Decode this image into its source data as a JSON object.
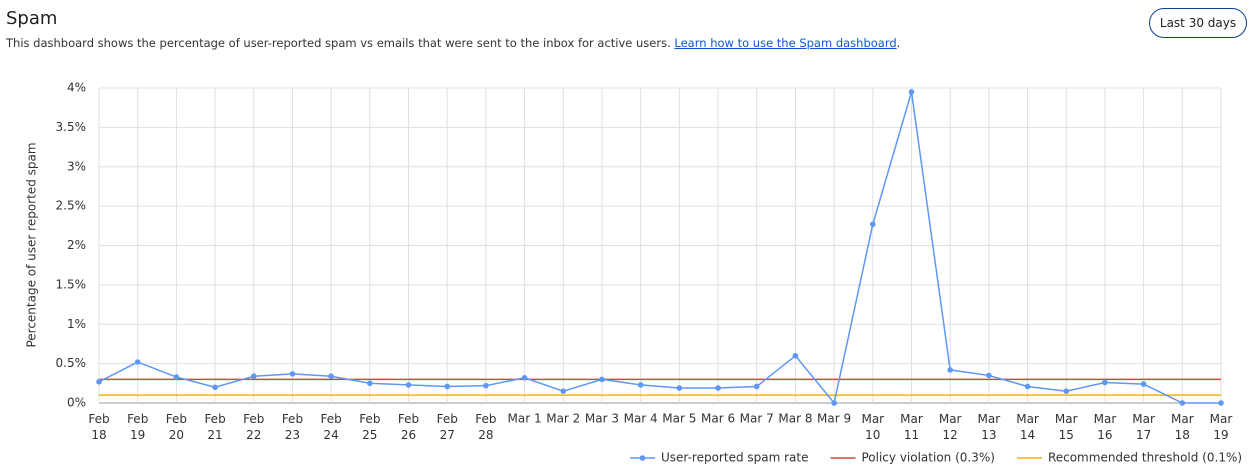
{
  "header": {
    "title": "Spam",
    "description": "This dashboard shows the percentage of user-reported spam vs emails that were sent to the inbox for active users.",
    "link": "Learn how to use the Spam dashboard",
    "link_end": ".",
    "button": "Last 30 days"
  },
  "chart_data": {
    "type": "line",
    "y_label": "Percentage of user reported spam",
    "categories": [
      "Feb 18",
      "Feb 19",
      "Feb 20",
      "Feb 21",
      "Feb 22",
      "Feb 23",
      "Feb 24",
      "Feb 25",
      "Feb 26",
      "Feb 27",
      "Feb 28",
      "Mar 1",
      "Mar 2",
      "Mar 3",
      "Mar 4",
      "Mar 5",
      "Mar 6",
      "Mar 7",
      "Mar 8",
      "Mar 9",
      "Mar 10",
      "Mar 11",
      "Mar 12",
      "Mar 13",
      "Mar 14",
      "Mar 15",
      "Mar 16",
      "Mar 17",
      "Mar 18",
      "Mar 19"
    ],
    "series": [
      {
        "name": "User-reported spam rate",
        "color": "#5e97f6",
        "markers": true,
        "values": [
          0.27,
          0.52,
          0.33,
          0.2,
          0.34,
          0.37,
          0.34,
          0.25,
          0.23,
          0.21,
          0.22,
          0.32,
          0.15,
          0.3,
          0.23,
          0.19,
          0.19,
          0.21,
          0.6,
          0,
          2.27,
          3.95,
          0.42,
          0.35,
          0.21,
          0.15,
          0.26,
          0.24,
          0,
          0
        ]
      },
      {
        "name": "Policy violation (0.3%)",
        "color": "#d9453a",
        "markers": false,
        "values": [
          0.3,
          0.3,
          0.3,
          0.3,
          0.3,
          0.3,
          0.3,
          0.3,
          0.3,
          0.3,
          0.3,
          0.3,
          0.3,
          0.3,
          0.3,
          0.3,
          0.3,
          0.3,
          0.3,
          0.3,
          0.3,
          0.3,
          0.3,
          0.3,
          0.3,
          0.3,
          0.3,
          0.3,
          0.3,
          0.3
        ]
      },
      {
        "name": "Recommended threshold (0.1%)",
        "color": "#f4b400",
        "markers": false,
        "values": [
          0.1,
          0.1,
          0.1,
          0.1,
          0.1,
          0.1,
          0.1,
          0.1,
          0.1,
          0.1,
          0.1,
          0.1,
          0.1,
          0.1,
          0.1,
          0.1,
          0.1,
          0.1,
          0.1,
          0.1,
          0.1,
          0.1,
          0.1,
          0.1,
          0.1,
          0.1,
          0.1,
          0.1,
          0.1,
          0.1
        ]
      }
    ],
    "ylim": [
      0,
      4
    ],
    "yticks": [
      {
        "value": 0,
        "label": "0%"
      },
      {
        "value": 0.5,
        "label": "0.5%"
      },
      {
        "value": 1,
        "label": "1%"
      },
      {
        "value": 1.5,
        "label": "1.5%"
      },
      {
        "value": 2,
        "label": "2%"
      },
      {
        "value": 2.5,
        "label": "2.5%"
      },
      {
        "value": 3,
        "label": "3%"
      },
      {
        "value": 3.5,
        "label": "3.5%"
      },
      {
        "value": 4,
        "label": "4%"
      }
    ],
    "grid": true,
    "legend": "bottom"
  }
}
